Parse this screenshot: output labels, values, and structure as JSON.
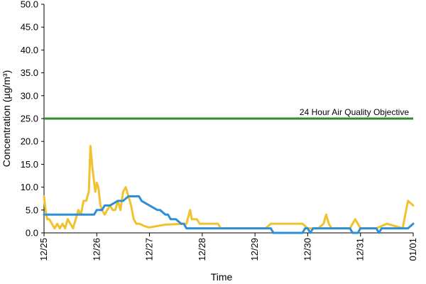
{
  "chart_data": {
    "type": "line",
    "xlabel": "Time",
    "ylabel": "Concentration (µg/m³)",
    "ylim": [
      0,
      50
    ],
    "y_ticks": [
      "0.0",
      "5.0",
      "10.0",
      "15.0",
      "20.0",
      "25.0",
      "30.0",
      "35.0",
      "40.0",
      "45.0",
      "50.0"
    ],
    "x_ticks": [
      "12/25",
      "12/26",
      "12/27",
      "12/28",
      "12/29",
      "12/30",
      "12/31",
      "01/01"
    ],
    "grid": false,
    "legend": "none",
    "annotations": [
      {
        "text": "24 Hour Air Quality Objective",
        "value": 25
      }
    ],
    "colors": {
      "yellow": "#f2c12e",
      "blue": "#2e8fd8",
      "objective": "#2e8b2e"
    },
    "series": [
      {
        "color": "#f2c12e",
        "x": [
          0,
          0.03,
          0.06,
          0.1,
          0.15,
          0.2,
          0.25,
          0.3,
          0.35,
          0.4,
          0.45,
          0.5,
          0.55,
          0.6,
          0.65,
          0.7,
          0.75,
          0.8,
          0.85,
          0.88,
          0.92,
          0.95,
          0.97,
          1.0,
          1.03,
          1.07,
          1.1,
          1.15,
          1.2,
          1.25,
          1.3,
          1.35,
          1.4,
          1.45,
          1.5,
          1.55,
          1.6,
          1.65,
          1.7,
          1.75,
          1.8,
          1.85,
          1.9,
          1.95,
          2.0,
          2.3,
          2.7,
          2.77,
          2.8,
          2.85,
          2.9,
          2.95,
          3.0,
          3.3,
          3.35,
          3.4,
          3.5,
          4.0,
          4.1,
          4.2,
          4.3,
          4.5,
          4.8,
          4.9,
          5.0,
          5.1,
          5.2,
          5.3,
          5.35,
          5.4,
          5.45,
          5.5,
          5.6,
          5.8,
          5.9,
          5.95,
          6.0,
          6.1,
          6.3,
          6.5,
          6.8,
          6.9,
          7.0
        ],
        "y": [
          8,
          5,
          3,
          3,
          2,
          1,
          2,
          1,
          2,
          1,
          3,
          2,
          1,
          3,
          5,
          4,
          7,
          7,
          9,
          19,
          14,
          11,
          9,
          11,
          10,
          6,
          5,
          4,
          5,
          6,
          5,
          5,
          7,
          5,
          9,
          10,
          8,
          6,
          3,
          2,
          2,
          1.8,
          1.5,
          1.3,
          1.2,
          1.8,
          2,
          5,
          3,
          3,
          3,
          2,
          2,
          2,
          1,
          1,
          1,
          1,
          1,
          1,
          2,
          2,
          2,
          2,
          1,
          1,
          1,
          2,
          4,
          2,
          1,
          1,
          1,
          1,
          3,
          2,
          1,
          1,
          1,
          2,
          1,
          7,
          6
        ]
      },
      {
        "color": "#2e8fd8",
        "x": [
          0,
          0.6,
          0.7,
          0.8,
          0.9,
          0.95,
          1.0,
          1.05,
          1.1,
          1.15,
          1.25,
          1.4,
          1.5,
          1.6,
          1.7,
          1.75,
          1.8,
          1.85,
          2.0,
          2.15,
          2.2,
          2.3,
          2.35,
          2.4,
          2.5,
          2.6,
          2.65,
          2.7,
          4.3,
          4.35,
          4.5,
          4.9,
          4.95,
          5.0,
          5.05,
          5.1,
          5.2,
          5.3,
          5.8,
          5.85,
          5.95,
          6.0,
          6.3,
          6.35,
          6.4,
          6.5,
          6.9,
          7.0
        ],
        "y": [
          4,
          4,
          4,
          4,
          4,
          4,
          5,
          5,
          5,
          6,
          6,
          7,
          7,
          8,
          8,
          8,
          8,
          7,
          6,
          5,
          5,
          4,
          4,
          3,
          3,
          2,
          2,
          1,
          1,
          0,
          0,
          0,
          1,
          1,
          0,
          1,
          1,
          1,
          1,
          0,
          0,
          1,
          1,
          0,
          1,
          1,
          1,
          2
        ]
      }
    ]
  }
}
